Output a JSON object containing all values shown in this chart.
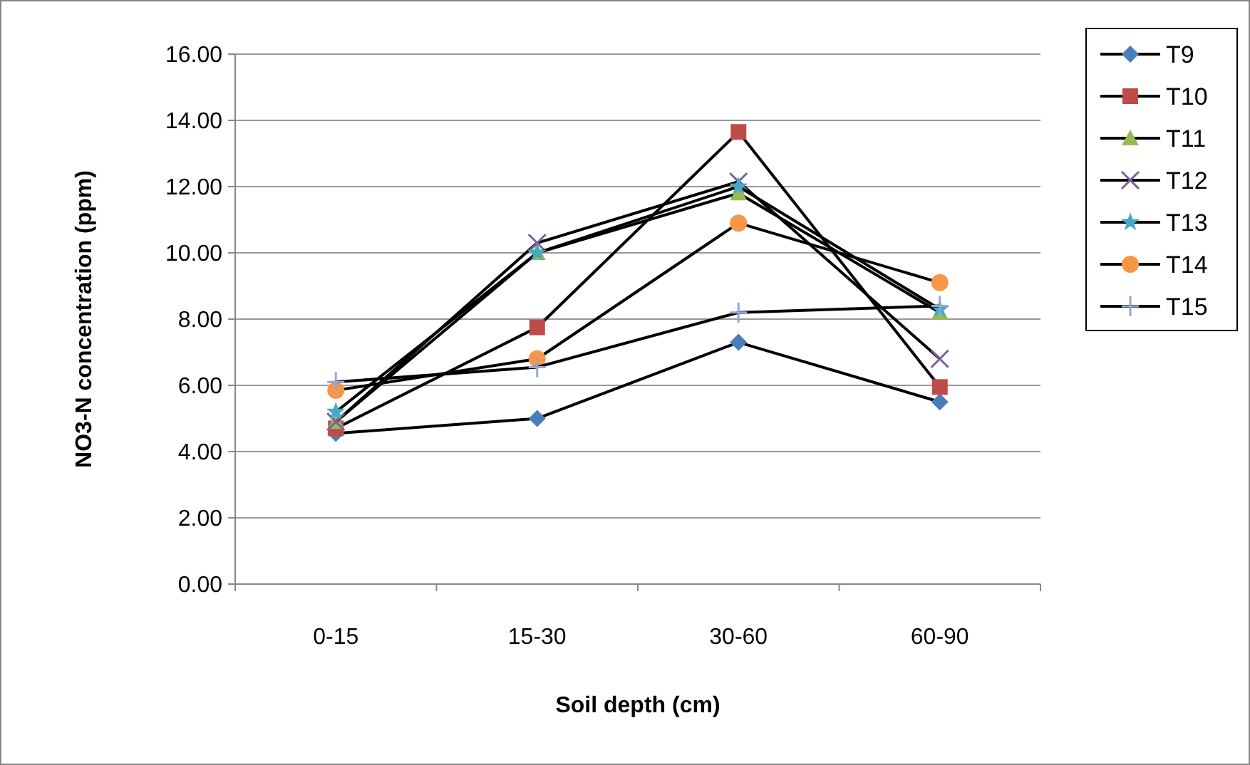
{
  "chart_data": {
    "type": "line",
    "xlabel": "Soil depth (cm)",
    "ylabel": "NO3-N concentration (ppm)",
    "categories": [
      "0-15",
      "15-30",
      "30-60",
      "60-90"
    ],
    "ylim": [
      0,
      16
    ],
    "yticks": [
      {
        "value": 0,
        "label": "0.00"
      },
      {
        "value": 2,
        "label": "2.00"
      },
      {
        "value": 4,
        "label": "4.00"
      },
      {
        "value": 6,
        "label": "6.00"
      },
      {
        "value": 8,
        "label": "8.00"
      },
      {
        "value": 10,
        "label": "10.00"
      },
      {
        "value": 12,
        "label": "12.00"
      },
      {
        "value": 14,
        "label": "14.00"
      },
      {
        "value": 16,
        "label": "16.00"
      }
    ],
    "grid": "y",
    "legend": "right",
    "line_style": "solid",
    "series": [
      {
        "name": "T9",
        "color": "#4a7ebb",
        "marker": "diamond",
        "values": [
          4.55,
          5.0,
          7.3,
          5.5
        ]
      },
      {
        "name": "T10",
        "color": "#be4b48",
        "marker": "square",
        "values": [
          4.7,
          7.75,
          13.65,
          5.95
        ]
      },
      {
        "name": "T11",
        "color": "#98b954",
        "marker": "triangle",
        "values": [
          4.9,
          10.0,
          11.8,
          8.2
        ]
      },
      {
        "name": "T12",
        "color": "#7d60a0",
        "marker": "cross",
        "values": [
          4.9,
          10.3,
          12.15,
          6.8
        ]
      },
      {
        "name": "T13",
        "color": "#46aac5",
        "marker": "star",
        "values": [
          5.2,
          10.0,
          12.0,
          8.3
        ]
      },
      {
        "name": "T14",
        "color": "#f79646",
        "marker": "circle",
        "values": [
          5.85,
          6.8,
          10.9,
          9.1
        ]
      },
      {
        "name": "T15",
        "color": "#8fa8d8",
        "marker": "plus",
        "values": [
          6.1,
          6.55,
          8.2,
          8.4
        ]
      }
    ]
  }
}
